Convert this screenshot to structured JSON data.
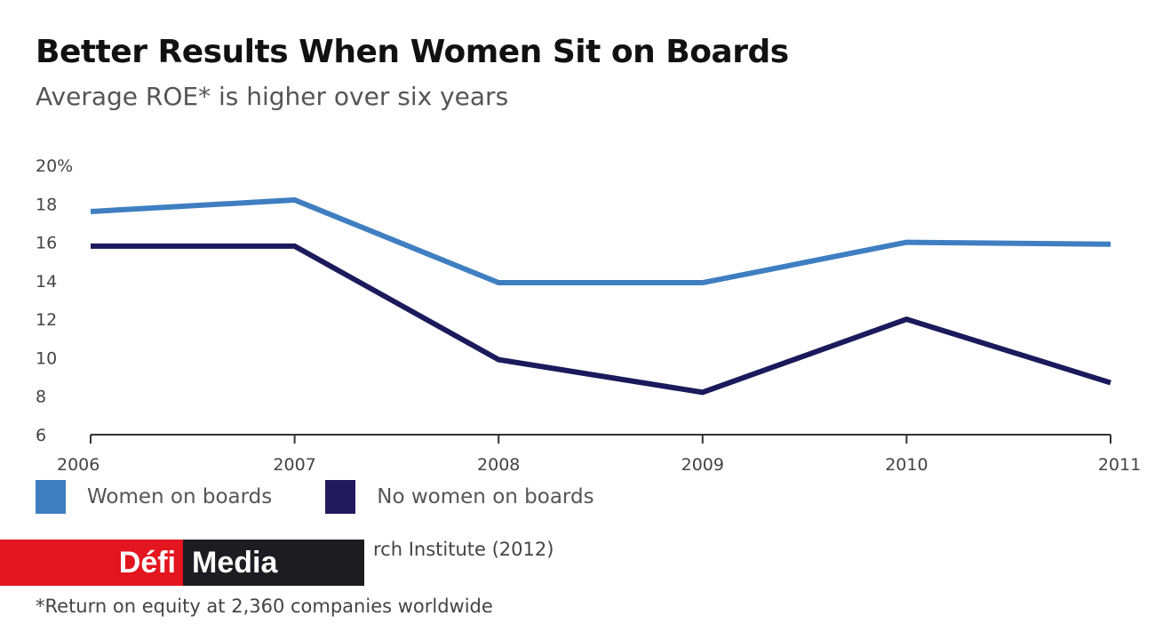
{
  "header": {
    "title": "Better Results When Women Sit on Boards",
    "subtitle": "Average ROE* is higher over six years"
  },
  "chart_data": {
    "type": "line",
    "title": "Better Results When Women Sit on Boards",
    "subtitle": "Average ROE* is higher over six years",
    "xlabel": "",
    "ylabel": "",
    "x": [
      "2006",
      "2007",
      "2008",
      "2009",
      "2010",
      "2011"
    ],
    "x_tick_labels": [
      "2006",
      "2007",
      "2008",
      "2009",
      "2010",
      "2011"
    ],
    "ylim": [
      6,
      20
    ],
    "y_ticks": [
      6,
      8,
      10,
      12,
      14,
      16,
      18,
      20
    ],
    "y_tick_labels": [
      "6",
      "8",
      "10",
      "12",
      "14",
      "16",
      "18",
      "20%"
    ],
    "grid": false,
    "legend_position": "bottom-left",
    "series": [
      {
        "name": "Women on boards",
        "color": "#3f7fc1",
        "values": [
          17.6,
          18.2,
          13.9,
          13.9,
          16.0,
          15.9
        ]
      },
      {
        "name": "No women on boards",
        "color": "#1b1a5c",
        "values": [
          15.8,
          15.8,
          9.9,
          8.2,
          12.0,
          8.7
        ]
      }
    ]
  },
  "legend": {
    "items": [
      {
        "label": "Women on boards",
        "color": "#3f7fc1"
      },
      {
        "label": "No women on boards",
        "color": "#231a5e"
      }
    ]
  },
  "source": {
    "text": "rch Institute (2012)"
  },
  "footnote": {
    "text": "*Return on equity at 2,360 companies worldwide"
  },
  "logo": {
    "part1": "Défi",
    "part2": "Media"
  }
}
